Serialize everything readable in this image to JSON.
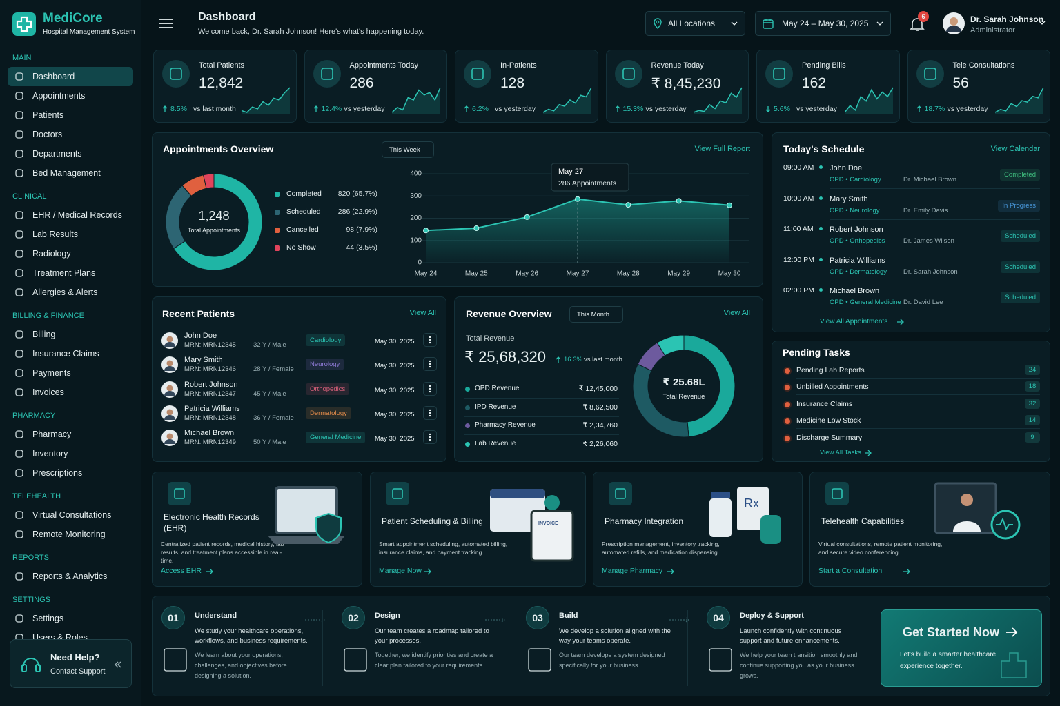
{
  "brand": {
    "name": "MediCore",
    "tagline": "Hospital Management System"
  },
  "sidebar": {
    "sections": [
      {
        "title": "MAIN",
        "items": [
          "Dashboard",
          "Appointments",
          "Patients",
          "Doctors",
          "Departments",
          "Bed Management"
        ]
      },
      {
        "title": "CLINICAL",
        "items": [
          "EHR / Medical Records",
          "Lab Results",
          "Radiology",
          "Treatment Plans",
          "Allergies & Alerts"
        ]
      },
      {
        "title": "BILLING & FINANCE",
        "items": [
          "Billing",
          "Insurance Claims",
          "Payments",
          "Invoices"
        ]
      },
      {
        "title": "PHARMACY",
        "items": [
          "Pharmacy",
          "Inventory",
          "Prescriptions"
        ]
      },
      {
        "title": "TELEHEALTH",
        "items": [
          "Virtual Consultations",
          "Remote Monitoring"
        ]
      },
      {
        "title": "REPORTS",
        "items": [
          "Reports & Analytics"
        ]
      },
      {
        "title": "SETTINGS",
        "items": [
          "Settings",
          "Users & Roles"
        ]
      }
    ],
    "help": {
      "title": "Need Help?",
      "subtitle": "Contact Support"
    }
  },
  "header": {
    "title": "Dashboard",
    "subtitle": "Welcome back, Dr. Sarah Johnson! Here's what's happening today.",
    "location": "All Locations",
    "date_range": "May 24 – May 30, 2025",
    "notifications": 6,
    "user": {
      "name": "Dr. Sarah Johnson",
      "role": "Administrator"
    }
  },
  "kpis": [
    {
      "label": "Total Patients",
      "value": "12,842",
      "change": "8.5%",
      "compare": "vs last month",
      "direction": "up",
      "trend": [
        12,
        10,
        16,
        14,
        22,
        18,
        26,
        24,
        32,
        38
      ]
    },
    {
      "label": "Appointments Today",
      "value": "286",
      "change": "12.4%",
      "compare": "vs yesterday",
      "direction": "up",
      "trend": [
        10,
        14,
        12,
        22,
        20,
        28,
        24,
        26,
        20,
        30
      ]
    },
    {
      "label": "In-Patients",
      "value": "128",
      "change": "6.2%",
      "compare": "vs yesterday",
      "direction": "up",
      "trend": [
        8,
        12,
        10,
        18,
        16,
        24,
        20,
        30,
        28,
        40
      ]
    },
    {
      "label": "Revenue Today",
      "value": "₹ 8,45,230",
      "change": "15.3%",
      "compare": "vs yesterday",
      "direction": "up",
      "trend": [
        8,
        10,
        9,
        16,
        12,
        20,
        18,
        28,
        24,
        34
      ]
    },
    {
      "label": "Pending Bills",
      "value": "162",
      "change": "5.6%",
      "compare": "vs yesterday",
      "direction": "down",
      "trend": [
        10,
        16,
        12,
        24,
        20,
        30,
        22,
        28,
        24,
        32
      ]
    },
    {
      "label": "Tele Consultations",
      "value": "56",
      "change": "18.7%",
      "compare": "vs yesterday",
      "direction": "up",
      "trend": [
        8,
        12,
        10,
        20,
        16,
        24,
        22,
        30,
        28,
        42
      ]
    }
  ],
  "appointments": {
    "title": "Appointments Overview",
    "filter": "This Week",
    "link": "View Full Report",
    "total": "1,248",
    "total_label": "Total Appointments",
    "breakdown": {
      "type": "pie",
      "categories": [
        "Completed",
        "Scheduled",
        "Cancelled",
        "No Show"
      ],
      "values": [
        820,
        286,
        98,
        44
      ],
      "value_labels": [
        "820 (65.7%)",
        "286 (22.9%)",
        "98 (7.9%)",
        "44 (3.5%)"
      ],
      "colors": [
        "#1fb5a5",
        "#2d6573",
        "#e0603f",
        "#e0445c"
      ]
    },
    "chart_data": {
      "type": "line",
      "categories": [
        "May 24",
        "May 25",
        "May 26",
        "May 27",
        "May 28",
        "May 29",
        "May 30"
      ],
      "values": [
        145,
        155,
        205,
        286,
        260,
        278,
        258
      ],
      "color": "#2cc4b3",
      "ylim": [
        0,
        400
      ],
      "yticks": [
        0,
        100,
        200,
        300,
        400
      ],
      "tooltip": {
        "title": "May 27",
        "text": "286 Appointments"
      }
    }
  },
  "schedule": {
    "title": "Today's Schedule",
    "link": "View Calendar",
    "items": [
      {
        "time": "09:00 AM",
        "name": "John Doe",
        "dept": "OPD • Cardiology",
        "doctor": "Dr. Michael Brown",
        "status": "Completed",
        "status_color": "#3fbf7f"
      },
      {
        "time": "10:00 AM",
        "name": "Mary Smith",
        "dept": "OPD • Neurology",
        "doctor": "Dr. Emily Davis",
        "status": "In Progress",
        "status_color": "#4a9be0"
      },
      {
        "time": "11:00 AM",
        "name": "Robert Johnson",
        "dept": "OPD • Orthopedics",
        "doctor": "Dr. James Wilson",
        "status": "Scheduled",
        "status_color": "#2cc4b3"
      },
      {
        "time": "12:00 PM",
        "name": "Patricia Williams",
        "dept": "OPD • Dermatology",
        "doctor": "Dr. Sarah Johnson",
        "status": "Scheduled",
        "status_color": "#2cc4b3"
      },
      {
        "time": "02:00 PM",
        "name": "Michael Brown",
        "dept": "OPD • General Medicine",
        "doctor": "Dr. David Lee",
        "status": "Scheduled",
        "status_color": "#2cc4b3"
      }
    ],
    "footer_link": "View All Appointments"
  },
  "recent_patients": {
    "title": "Recent Patients",
    "link": "View All",
    "rows": [
      {
        "name": "John Doe",
        "mrn": "MRN: MRN12345",
        "age": "32 Y / Male",
        "dept": "Cardiology",
        "tag_color": "#2cc4b3",
        "date": "May 30, 2025"
      },
      {
        "name": "Mary Smith",
        "mrn": "MRN: MRN12346",
        "age": "28 Y / Female",
        "dept": "Neurology",
        "tag_color": "#8f7ad6",
        "date": "May 30, 2025"
      },
      {
        "name": "Robert Johnson",
        "mrn": "MRN: MRN12347",
        "age": "45 Y / Male",
        "dept": "Orthopedics",
        "tag_color": "#d9607a",
        "date": "May 30, 2025"
      },
      {
        "name": "Patricia Williams",
        "mrn": "MRN: MRN12348",
        "age": "36 Y / Female",
        "dept": "Dermatology",
        "tag_color": "#e08a4a",
        "date": "May 30, 2025"
      },
      {
        "name": "Michael Brown",
        "mrn": "MRN: MRN12349",
        "age": "50 Y / Male",
        "dept": "General Medicine",
        "tag_color": "#2cc4b3",
        "date": "May 30, 2025"
      }
    ]
  },
  "revenue": {
    "title": "Revenue Overview",
    "filter": "This Month",
    "link": "View All",
    "total_label": "Total Revenue",
    "total": "₹ 25,68,320",
    "change": "16.3%",
    "compare": "vs last month",
    "center_value": "₹ 25.68L",
    "center_label": "Total Revenue",
    "chart_data": {
      "type": "pie",
      "categories": [
        "OPD Revenue",
        "IPD Revenue",
        "Pharmacy Revenue",
        "Lab Revenue"
      ],
      "values": [
        1245000,
        862500,
        234760,
        226060
      ],
      "value_labels": [
        "₹ 12,45,000",
        "₹ 8,62,500",
        "₹ 2,34,760",
        "₹ 2,26,060"
      ],
      "colors": [
        "#1aa99b",
        "#1e5a63",
        "#6d5a9e",
        "#2bc4b3"
      ]
    }
  },
  "pending_tasks": {
    "title": "Pending Tasks",
    "items": [
      {
        "label": "Pending Lab Reports",
        "count": 24
      },
      {
        "label": "Unbilled Appointments",
        "count": 18
      },
      {
        "label": "Insurance Claims",
        "count": 32
      },
      {
        "label": "Medicine Low Stock",
        "count": 14
      },
      {
        "label": "Discharge Summary",
        "count": 9
      }
    ],
    "link": "View All Tasks"
  },
  "features": [
    {
      "title": "Electronic Health Records (EHR)",
      "description": "Centralized patient records, medical history, lab results, and treatment plans accessible in real-time.",
      "link": "Access EHR"
    },
    {
      "title": "Patient Scheduling & Billing",
      "description": "Smart appointment scheduling, automated billing, insurance claims, and payment tracking.",
      "link": "Manage Now",
      "badge": "INVOICE"
    },
    {
      "title": "Pharmacy Integration",
      "description": "Prescription management, inventory tracking, automated refills, and medication dispensing.",
      "link": "Manage Pharmacy",
      "badge": "Rx"
    },
    {
      "title": "Telehealth Capabilities",
      "description": "Virtual consultations, remote patient monitoring, and secure video conferencing.",
      "link": "Start a Consultation"
    }
  ],
  "steps": [
    {
      "number": "01",
      "title": "Understand",
      "description": "We study your healthcare operations, workflows, and business requirements.",
      "detail": "We learn about your operations, challenges, and objectives before designing a solution."
    },
    {
      "number": "02",
      "title": "Design",
      "description": "Our team creates a roadmap tailored to your processes.",
      "detail": "Together, we identify priorities and create a clear plan tailored to your requirements."
    },
    {
      "number": "03",
      "title": "Build",
      "description": "We develop a solution aligned with the way your teams operate.",
      "detail": "Our team develops a system designed specifically for your business."
    },
    {
      "number": "04",
      "title": "Deploy & Support",
      "description": "Launch confidently with continuous support and future enhancements.",
      "detail": "We help your team transition smoothly and continue supporting you as your business grows."
    }
  ],
  "cta": {
    "title": "Get Started Now",
    "text": "Let's build a smarter healthcare experience together."
  }
}
